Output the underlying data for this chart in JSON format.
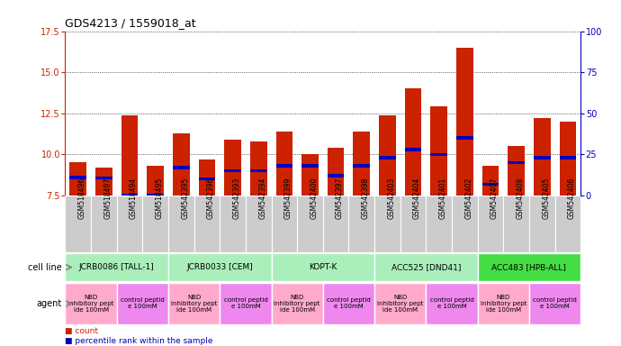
{
  "title": "GDS4213 / 1559018_at",
  "samples": [
    "GSM518496",
    "GSM518497",
    "GSM518494",
    "GSM518495",
    "GSM542395",
    "GSM542396",
    "GSM542393",
    "GSM542394",
    "GSM542399",
    "GSM542400",
    "GSM542397",
    "GSM542398",
    "GSM542403",
    "GSM542404",
    "GSM542401",
    "GSM542402",
    "GSM542407",
    "GSM542408",
    "GSM542405",
    "GSM542406"
  ],
  "count_values": [
    9.5,
    9.2,
    12.4,
    9.3,
    11.3,
    9.7,
    10.9,
    10.8,
    11.4,
    10.0,
    10.4,
    11.4,
    12.4,
    14.0,
    12.9,
    16.5,
    9.3,
    10.5,
    12.2,
    12.0
  ],
  "percentile_values": [
    8.6,
    8.55,
    7.52,
    7.52,
    9.2,
    8.5,
    9.0,
    9.0,
    9.3,
    9.3,
    8.7,
    9.3,
    9.8,
    10.3,
    10.0,
    11.0,
    8.2,
    9.5,
    9.8,
    9.8
  ],
  "ylim": [
    7.5,
    17.5
  ],
  "y2lim": [
    0,
    100
  ],
  "yticks": [
    7.5,
    10.0,
    12.5,
    15.0,
    17.5
  ],
  "y2ticks": [
    0,
    25,
    50,
    75,
    100
  ],
  "cell_lines": [
    {
      "label": "JCRB0086 [TALL-1]",
      "start": 0,
      "end": 4,
      "color": "#aaeebb"
    },
    {
      "label": "JCRB0033 [CEM]",
      "start": 4,
      "end": 8,
      "color": "#aaeebb"
    },
    {
      "label": "KOPT-K",
      "start": 8,
      "end": 12,
      "color": "#aaeebb"
    },
    {
      "label": "ACC525 [DND41]",
      "start": 12,
      "end": 16,
      "color": "#aaeebb"
    },
    {
      "label": "ACC483 [HPB-ALL]",
      "start": 16,
      "end": 20,
      "color": "#44dd44"
    }
  ],
  "agents": [
    {
      "label": "NBD\ninhibitory pept\nide 100mM",
      "start": 0,
      "end": 2,
      "color": "#ffaacc"
    },
    {
      "label": "control peptid\ne 100mM",
      "start": 2,
      "end": 4,
      "color": "#ee88ee"
    },
    {
      "label": "NBD\ninhibitory pept\nide 100mM",
      "start": 4,
      "end": 6,
      "color": "#ffaacc"
    },
    {
      "label": "control peptid\ne 100mM",
      "start": 6,
      "end": 8,
      "color": "#ee88ee"
    },
    {
      "label": "NBD\ninhibitory pept\nide 100mM",
      "start": 8,
      "end": 10,
      "color": "#ffaacc"
    },
    {
      "label": "control peptid\ne 100mM",
      "start": 10,
      "end": 12,
      "color": "#ee88ee"
    },
    {
      "label": "NBD\ninhibitory pept\nide 100mM",
      "start": 12,
      "end": 14,
      "color": "#ffaacc"
    },
    {
      "label": "control peptid\ne 100mM",
      "start": 14,
      "end": 16,
      "color": "#ee88ee"
    },
    {
      "label": "NBD\ninhibitory pept\nide 100mM",
      "start": 16,
      "end": 18,
      "color": "#ffaacc"
    },
    {
      "label": "control peptid\ne 100mM",
      "start": 18,
      "end": 20,
      "color": "#ee88ee"
    }
  ],
  "bar_color": "#cc2200",
  "dot_color": "#0000bb",
  "left_axis_color": "#cc2200",
  "right_axis_color": "#0000bb",
  "xtick_bg": "#cccccc",
  "cell_line_label": "cell line",
  "agent_label": "agent",
  "legend_items": [
    {
      "color": "#cc2200",
      "label": "count"
    },
    {
      "color": "#0000bb",
      "label": "percentile rank within the sample"
    }
  ]
}
